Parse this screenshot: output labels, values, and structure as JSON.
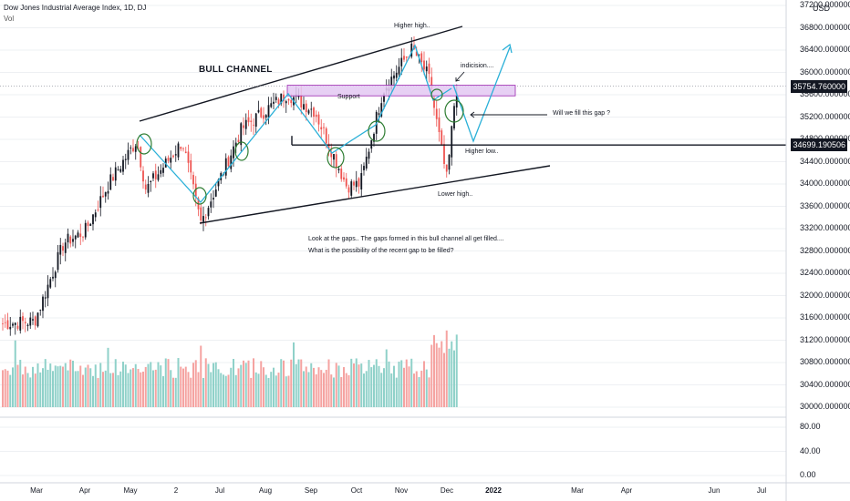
{
  "header": {
    "title": "Dow Jones Industrial Average Index, 1D, DJ",
    "vol_label": "Vol",
    "currency": "USD"
  },
  "price_axis": {
    "ticks": [
      "37200.000000",
      "36800.000000",
      "36400.000000",
      "36000.000000",
      "35600.000000",
      "35200.000000",
      "34800.000000",
      "34400.000000",
      "34000.000000",
      "33600.000000",
      "33200.000000",
      "32800.000000",
      "32400.000000",
      "32000.000000",
      "31600.000000",
      "31200.000000",
      "30800.000000",
      "30400.000000",
      "30000.000000"
    ],
    "current_price": "35754.760000",
    "line_price": "34699.190506"
  },
  "volume_axis": {
    "ticks": [
      "80.00",
      "40.00",
      "0.00"
    ]
  },
  "time_axis": {
    "ticks": [
      "Mar",
      "Apr",
      "May",
      "2",
      "Jul",
      "Aug",
      "Sep",
      "Oct",
      "Nov",
      "Dec",
      "2022",
      "Mar",
      "Apr",
      "Jun",
      "Jul"
    ]
  },
  "annotations": {
    "bull_channel": "BULL CHANNEL",
    "support": "Support",
    "higher_high": "Higher high..",
    "indecision": "indicision....",
    "fill_gap": "Will we fill this gap ?",
    "higher_low": "Higher low..",
    "lower_high": "Lower high..",
    "note1": "Look at the gaps.. The gaps formed in this bull channel all get filled....",
    "note2": "What is the possibility of the recent gap to be filled?"
  },
  "colors": {
    "up": "#26a69a",
    "down": "#ef5350",
    "volume_up": "#8fd1c9",
    "volume_down": "#f5a3a1",
    "projection": "#2ab0d8",
    "support_fill": "#e3c8f2",
    "support_stroke": "#9c27b0",
    "circle": "#2e7d32"
  },
  "chart_data": {
    "type": "candlestick",
    "title": "Dow Jones Industrial Average Index, 1D, DJ",
    "y_axis_range": [
      30000,
      37200
    ],
    "volume_range": [
      0,
      80
    ],
    "key_levels": [
      {
        "label": "current",
        "value": 35754.76
      },
      {
        "label": "horizontal line",
        "value": 34699.190506
      }
    ],
    "support_zone": [
      35580,
      35770
    ],
    "close_series_approx": [
      {
        "x": "Feb 18",
        "y": 31490
      },
      {
        "x": "Mar 01",
        "y": 31540
      },
      {
        "x": "Mar 15",
        "y": 32950
      },
      {
        "x": "Apr 01",
        "y": 33150
      },
      {
        "x": "Apr 15",
        "y": 34030
      },
      {
        "x": "May 07",
        "y": 34780
      },
      {
        "x": "May 19",
        "y": 33900
      },
      {
        "x": "Jun 04",
        "y": 34760
      },
      {
        "x": "Jun 21",
        "y": 33300
      },
      {
        "x": "Jul 12",
        "y": 34990
      },
      {
        "x": "Aug 16",
        "y": 35620
      },
      {
        "x": "Sep 01",
        "y": 35310
      },
      {
        "x": "Sep 20",
        "y": 33970
      },
      {
        "x": "Oct 04",
        "y": 34000
      },
      {
        "x": "Oct 22",
        "y": 35680
      },
      {
        "x": "Nov 08",
        "y": 36430
      },
      {
        "x": "Nov 17",
        "y": 35920
      },
      {
        "x": "Dec 01",
        "y": 34070
      },
      {
        "x": "Dec 10",
        "y": 35750
      }
    ]
  }
}
